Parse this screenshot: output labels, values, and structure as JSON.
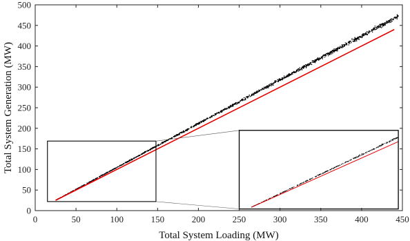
{
  "chart_data": {
    "type": "scatter",
    "xlabel": "Total System Loading (MW)",
    "ylabel": "Total System Generation (MW)",
    "xlim": [
      0,
      450
    ],
    "ylim": [
      0,
      500
    ],
    "xticks": [
      "0",
      "50",
      "100",
      "150",
      "200",
      "250",
      "300",
      "350",
      "400",
      "450"
    ],
    "yticks": [
      "0",
      "50",
      "100",
      "150",
      "200",
      "250",
      "300",
      "350",
      "400",
      "450",
      "500"
    ],
    "grid": false,
    "series": [
      {
        "kind": "scatter",
        "color": "#000000",
        "x_range": [
          25,
          445
        ],
        "trend": {
          "slope": 1.065,
          "intercept": -1.5
        },
        "spread_fraction": 0.005
      },
      {
        "kind": "line",
        "color": "#e60000",
        "x": [
          25,
          440
        ],
        "y": [
          25,
          440
        ]
      }
    ],
    "zoom_region": {
      "xlim": [
        15,
        148
      ],
      "ylim": [
        22,
        169
      ]
    },
    "inset_axes": {
      "xlim": [
        250,
        445
      ],
      "ylim": [
        4,
        195
      ]
    }
  }
}
